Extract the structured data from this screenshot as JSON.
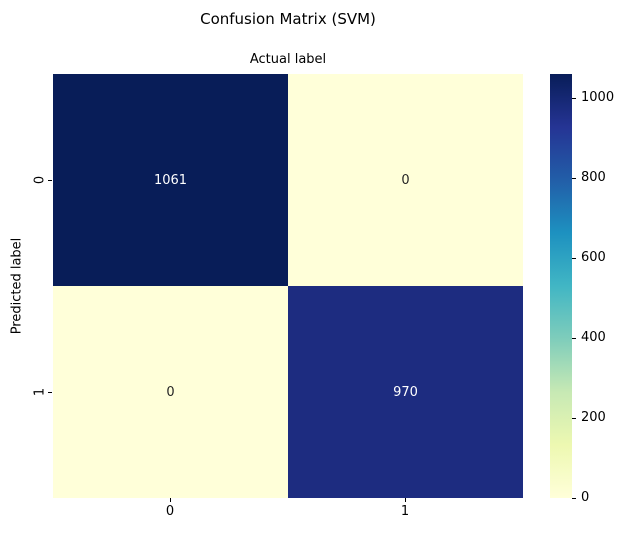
{
  "chart_data": {
    "type": "heatmap",
    "title": "Confusion Matrix (SVM)",
    "xlabel": "Actual label",
    "ylabel": "Predicted label",
    "x_tick_labels": [
      "0",
      "1"
    ],
    "y_tick_labels": [
      "0",
      "1"
    ],
    "matrix": [
      [
        1061,
        0
      ],
      [
        0,
        970
      ]
    ],
    "vmin": 0,
    "vmax": 1061,
    "colormap": "YlGnBu",
    "colormap_stops": [
      "#ffffd9",
      "#edf8b1",
      "#c7e9b4",
      "#7fcdbb",
      "#41b6c4",
      "#1d91c0",
      "#225ea8",
      "#253494",
      "#081d58"
    ],
    "cells": [
      {
        "row": 0,
        "col": 0,
        "value": "1061",
        "bg": "#081d58",
        "fg": "#ffffff"
      },
      {
        "row": 0,
        "col": 1,
        "value": "0",
        "bg": "#ffffd9",
        "fg": "#262626"
      },
      {
        "row": 1,
        "col": 0,
        "value": "0",
        "bg": "#ffffd9",
        "fg": "#262626"
      },
      {
        "row": 1,
        "col": 1,
        "value": "970",
        "bg": "#1d2c80",
        "fg": "#ffffff"
      }
    ],
    "colorbar": {
      "ticks": [
        {
          "value": 1000,
          "label": "1000"
        },
        {
          "value": 800,
          "label": "800"
        },
        {
          "value": 600,
          "label": "600"
        },
        {
          "value": 400,
          "label": "400"
        },
        {
          "value": 200,
          "label": "200"
        },
        {
          "value": 0,
          "label": "0"
        }
      ],
      "position": "right"
    },
    "grid": false,
    "legend_position": "none",
    "background": "#ffffff"
  }
}
